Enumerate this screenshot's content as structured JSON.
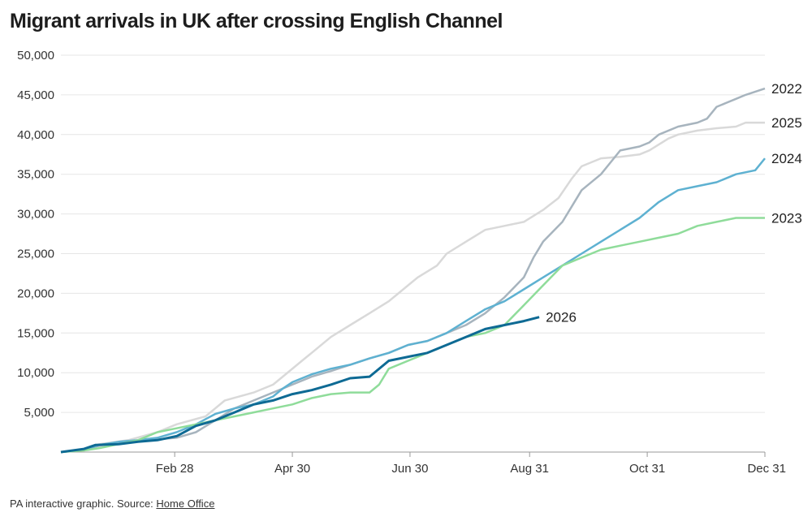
{
  "title": "Migrant arrivals in UK after crossing English Channel",
  "footer": {
    "prefix": "PA interactive graphic. Source: ",
    "link_text": "Home Office"
  },
  "chart_data": {
    "type": "line",
    "xlabel": "",
    "ylabel": "",
    "xlim": [
      0,
      365
    ],
    "ylim": [
      0,
      50000
    ],
    "x_ticks": [
      {
        "day": 59,
        "label": "Feb 28"
      },
      {
        "day": 120,
        "label": "Apr 30"
      },
      {
        "day": 181,
        "label": "Jun 30"
      },
      {
        "day": 243,
        "label": "Aug 31"
      },
      {
        "day": 304,
        "label": "Oct 31"
      },
      {
        "day": 365,
        "label": "Dec 31"
      }
    ],
    "y_ticks": [
      {
        "value": 5000,
        "label": "5,000"
      },
      {
        "value": 10000,
        "label": "10,000"
      },
      {
        "value": 15000,
        "label": "15,000"
      },
      {
        "value": 20000,
        "label": "20,000"
      },
      {
        "value": 25000,
        "label": "25,000"
      },
      {
        "value": 30000,
        "label": "30,000"
      },
      {
        "value": 35000,
        "label": "35,000"
      },
      {
        "value": 40000,
        "label": "40,000"
      },
      {
        "value": 45000,
        "label": "45,000"
      },
      {
        "value": 50000,
        "label": "50,000"
      }
    ],
    "series": [
      {
        "name": "2025",
        "color": "#d9d9d9",
        "x": [
          0,
          12,
          20,
          35,
          50,
          60,
          75,
          85,
          100,
          110,
          115,
          125,
          130,
          140,
          150,
          160,
          170,
          175,
          185,
          195,
          200,
          210,
          220,
          230,
          240,
          250,
          258,
          265,
          270,
          280,
          290,
          300,
          305,
          315,
          320,
          330,
          340,
          350,
          355,
          365
        ],
        "y": [
          0,
          300,
          1000,
          1500,
          2500,
          3500,
          4500,
          6500,
          7500,
          8500,
          9500,
          11500,
          12500,
          14500,
          16000,
          17500,
          19000,
          20000,
          22000,
          23500,
          25000,
          26500,
          28000,
          28500,
          29000,
          30500,
          32000,
          34500,
          36000,
          37000,
          37200,
          37500,
          38000,
          39500,
          40000,
          40500,
          40800,
          41000,
          41500,
          41500
        ]
      },
      {
        "name": "2022",
        "color": "#a7b4be",
        "x": [
          0,
          12,
          20,
          30,
          45,
          60,
          70,
          80,
          90,
          100,
          110,
          120,
          130,
          140,
          150,
          160,
          170,
          180,
          190,
          200,
          210,
          220,
          230,
          240,
          245,
          250,
          260,
          265,
          270,
          280,
          285,
          290,
          300,
          305,
          310,
          320,
          330,
          335,
          340,
          350,
          355,
          365
        ],
        "y": [
          0,
          300,
          800,
          1200,
          1500,
          1800,
          2500,
          4000,
          5500,
          6500,
          7500,
          8500,
          9500,
          10200,
          11000,
          11800,
          12500,
          13500,
          14000,
          15000,
          16000,
          17500,
          19500,
          22000,
          24500,
          26500,
          29000,
          31000,
          33000,
          35000,
          36500,
          38000,
          38500,
          39000,
          40000,
          41000,
          41500,
          42000,
          43500,
          44500,
          45000,
          45800
        ]
      },
      {
        "name": "2024",
        "color": "#5eb1d1",
        "x": [
          0,
          12,
          20,
          30,
          40,
          50,
          60,
          70,
          80,
          90,
          100,
          110,
          115,
          120,
          130,
          140,
          150,
          160,
          170,
          180,
          190,
          200,
          210,
          220,
          230,
          240,
          250,
          260,
          270,
          280,
          290,
          300,
          310,
          320,
          330,
          340,
          350,
          360,
          365
        ],
        "y": [
          0,
          300,
          900,
          1300,
          1500,
          1800,
          2500,
          3500,
          4800,
          5500,
          6000,
          7000,
          8000,
          8800,
          9800,
          10500,
          11000,
          11800,
          12500,
          13500,
          14000,
          15000,
          16500,
          18000,
          19000,
          20500,
          22000,
          23500,
          25000,
          26500,
          28000,
          29500,
          31500,
          33000,
          33500,
          34000,
          35000,
          35500,
          37000
        ]
      },
      {
        "name": "2023",
        "color": "#8fdc9a",
        "x": [
          0,
          12,
          20,
          30,
          40,
          50,
          60,
          70,
          80,
          90,
          100,
          110,
          120,
          130,
          140,
          150,
          160,
          165,
          170,
          180,
          190,
          200,
          210,
          220,
          230,
          240,
          250,
          260,
          270,
          280,
          290,
          300,
          310,
          320,
          330,
          340,
          350,
          365
        ],
        "y": [
          0,
          200,
          500,
          1000,
          1500,
          2500,
          3000,
          3500,
          4000,
          4500,
          5000,
          5500,
          6000,
          6800,
          7300,
          7500,
          7500,
          8500,
          10500,
          11500,
          12500,
          13500,
          14500,
          15000,
          16000,
          18500,
          21000,
          23500,
          24500,
          25500,
          26000,
          26500,
          27000,
          27500,
          28500,
          29000,
          29500,
          29500
        ]
      },
      {
        "name": "2026",
        "color": "#0e6a94",
        "x": [
          0,
          12,
          18,
          30,
          40,
          50,
          60,
          70,
          80,
          90,
          100,
          110,
          120,
          130,
          140,
          150,
          160,
          170,
          180,
          190,
          200,
          210,
          220,
          230,
          240,
          248
        ],
        "y": [
          0,
          400,
          900,
          1000,
          1300,
          1500,
          2000,
          3300,
          4000,
          5000,
          6000,
          6500,
          7300,
          7800,
          8500,
          9300,
          9500,
          11500,
          12000,
          12500,
          13500,
          14500,
          15500,
          16000,
          16500,
          17000
        ]
      }
    ]
  }
}
